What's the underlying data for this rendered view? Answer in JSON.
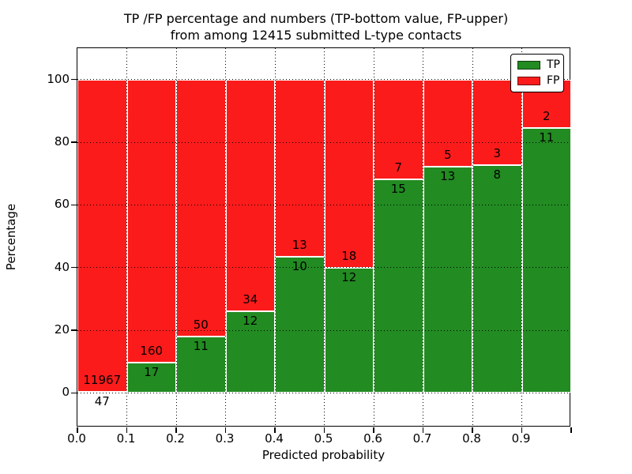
{
  "figure": {
    "title_line1": "TP /FP percentage and numbers (TP-bottom value, FP-upper)",
    "title_line2": "from among 12415 submitted L-type contacts"
  },
  "chart_data": {
    "type": "bar",
    "stacked": true,
    "title": "TP /FP percentage and numbers (TP-bottom value, FP-upper) from among 12415 submitted L-type contacts",
    "xlabel": "Predicted probability",
    "ylabel": "Percentage",
    "xlim": [
      0.0,
      1.0
    ],
    "ylim": [
      -11,
      110
    ],
    "x_tick_labels": [
      "0.0",
      "0.1",
      "0.2",
      "0.3",
      "0.4",
      "0.5",
      "0.6",
      "0.7",
      "0.8",
      "0.9"
    ],
    "y_tick_values": [
      0,
      20,
      40,
      60,
      80,
      100
    ],
    "bin_starts": [
      0.0,
      0.1,
      0.2,
      0.3,
      0.4,
      0.5,
      0.6,
      0.7,
      0.8,
      0.9
    ],
    "bar_width": 0.1,
    "total_contacts": 12415,
    "series": [
      {
        "name": "TP",
        "color": "#228b22",
        "counts": [
          47,
          17,
          11,
          12,
          10,
          12,
          15,
          13,
          8,
          11
        ]
      },
      {
        "name": "FP",
        "color": "#fb1b1b",
        "counts": [
          11967,
          160,
          50,
          34,
          13,
          18,
          7,
          5,
          3,
          2
        ]
      }
    ],
    "percent_tp": [
      0.39,
      9.6,
      18.03,
      26.09,
      43.48,
      40.0,
      68.18,
      72.22,
      72.73,
      84.62
    ],
    "legend": {
      "location": "upper right",
      "entries": [
        "TP",
        "FP"
      ]
    },
    "grid": "dotted",
    "bar_edge_color": "#ffffff",
    "grid_color": "#000000"
  }
}
